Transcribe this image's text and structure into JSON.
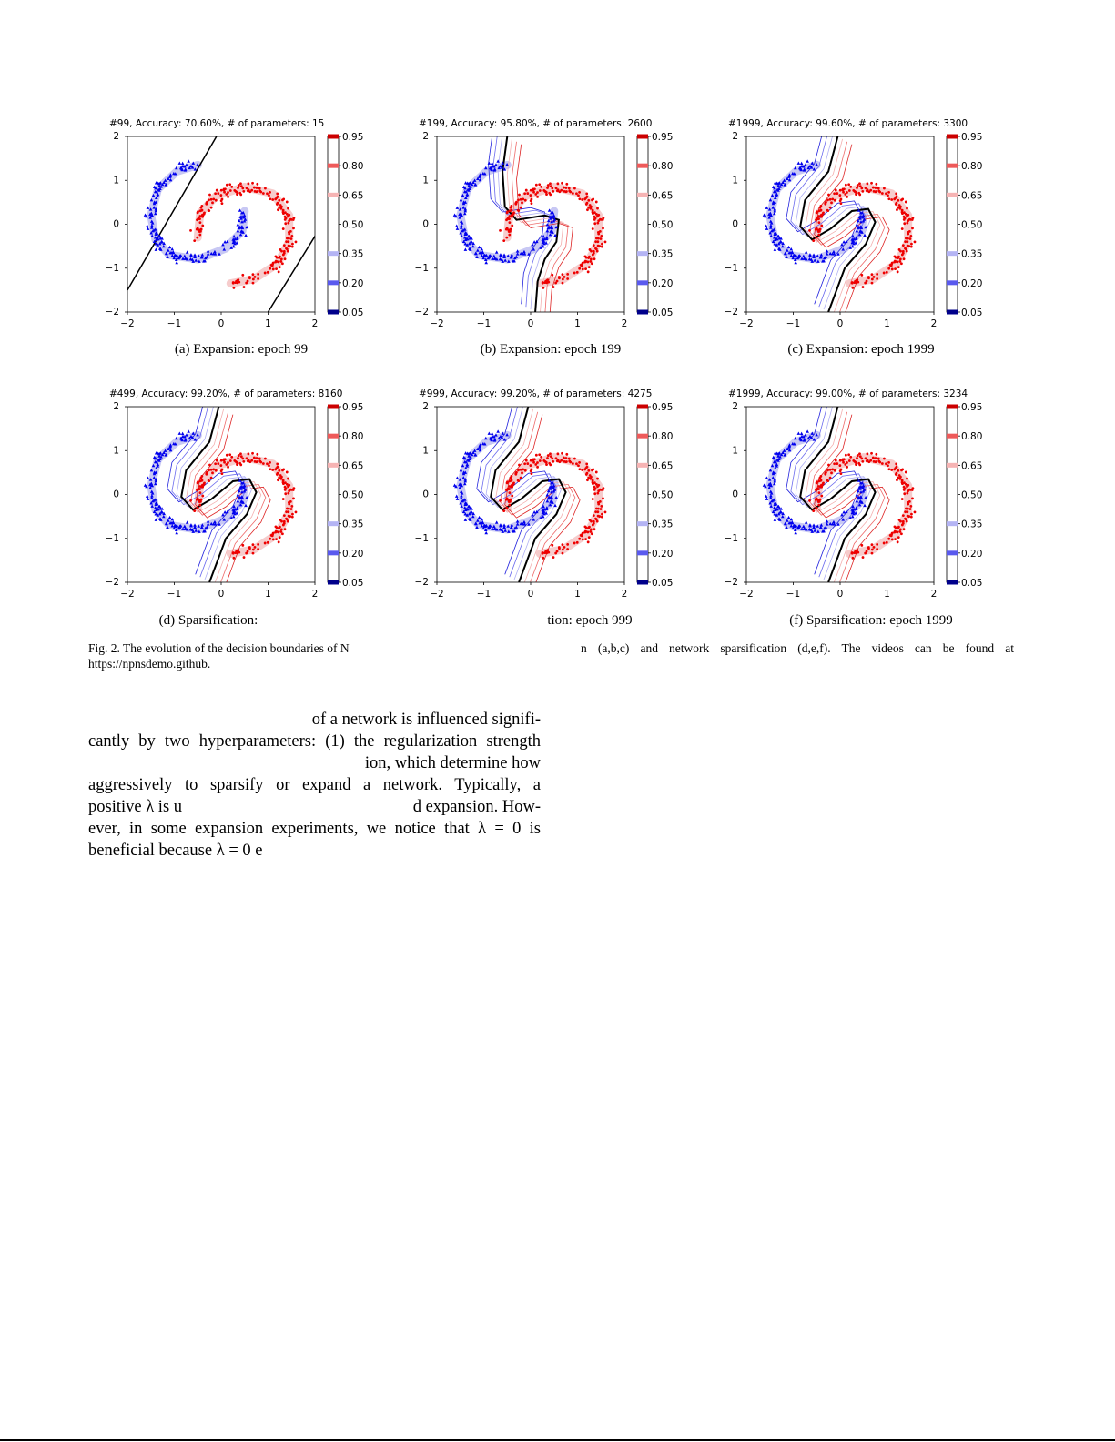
{
  "figure": {
    "subcaptions": [
      "(a) Expansion: epoch 99",
      "(b) Expansion: epoch 199",
      "(c) Expansion: epoch 1999",
      "(d) Sparsification:",
      "tion: epoch 999",
      "(f) Sparsification: epoch 1999"
    ],
    "caption_part1": "Fig. 2.   The evolution of the decision boundaries of N",
    "caption_part2": "n (a,b,c) and network sparsification (d,e,f). The videos can be found at",
    "caption_line2": "https://npnsdemo.github."
  },
  "body": {
    "lines": [
      "of a network is influenced signifi-",
      "cantly by two hyperparameters: (1) the regularization strength",
      "ion, which determine how",
      "aggressively to sparsify or expand a network. Typically, a",
      "positive λ is u",
      "d expansion. How-",
      "ever, in some expansion experiments, we notice that λ = 0 is",
      "beneficial because λ = 0 e"
    ]
  },
  "chart_data": [
    {
      "type": "scatter",
      "title": "#99, Accuracy: 70.60%, # of parameters: 15",
      "xlim": [
        -2,
        2
      ],
      "ylim": [
        -2,
        2
      ],
      "xticks": [
        "−2",
        "−1",
        "0",
        "1",
        "2"
      ],
      "yticks": [
        "−2",
        "−1",
        "0",
        "1",
        "2"
      ],
      "colorbar_ticks": [
        "0.05",
        "0.20",
        "0.35",
        "0.50",
        "0.65",
        "0.80",
        "0.95"
      ],
      "boundary": "linear",
      "classes": {
        "negative": "#0000ff",
        "positive": "#ff0000"
      }
    },
    {
      "type": "scatter",
      "title": "#199, Accuracy: 95.80%, # of parameters: 2600",
      "xlim": [
        -2,
        2
      ],
      "ylim": [
        -2,
        2
      ],
      "xticks": [
        "−2",
        "−1",
        "0",
        "1",
        "2"
      ],
      "yticks": [
        "−2",
        "−1",
        "0",
        "1",
        "2"
      ],
      "colorbar_ticks": [
        "0.05",
        "0.20",
        "0.35",
        "0.50",
        "0.65",
        "0.80",
        "0.95"
      ],
      "boundary": "curved",
      "classes": {
        "negative": "#0000ff",
        "positive": "#ff0000"
      }
    },
    {
      "type": "scatter",
      "title": "#1999, Accuracy: 99.60%, # of parameters: 3300",
      "xlim": [
        -2,
        2
      ],
      "ylim": [
        -2,
        2
      ],
      "xticks": [
        "−2",
        "−1",
        "0",
        "1",
        "2"
      ],
      "yticks": [
        "−2",
        "−1",
        "0",
        "1",
        "2"
      ],
      "colorbar_ticks": [
        "0.05",
        "0.20",
        "0.35",
        "0.50",
        "0.65",
        "0.80",
        "0.95"
      ],
      "boundary": "spiral",
      "classes": {
        "negative": "#0000ff",
        "positive": "#ff0000"
      }
    },
    {
      "type": "scatter",
      "title": "#499, Accuracy: 99.20%, # of parameters: 8160",
      "xlim": [
        -2,
        2
      ],
      "ylim": [
        -2,
        2
      ],
      "xticks": [
        "−2",
        "−1",
        "0",
        "1",
        "2"
      ],
      "yticks": [
        "−2",
        "−1",
        "0",
        "1",
        "2"
      ],
      "colorbar_ticks": [
        "0.05",
        "0.20",
        "0.35",
        "0.50",
        "0.65",
        "0.80",
        "0.95"
      ],
      "boundary": "spiral",
      "classes": {
        "negative": "#0000ff",
        "positive": "#ff0000"
      }
    },
    {
      "type": "scatter",
      "title": "#999, Accuracy: 99.20%, # of parameters: 4275",
      "xlim": [
        -2,
        2
      ],
      "ylim": [
        -2,
        2
      ],
      "xticks": [
        "−2",
        "−1",
        "0",
        "1",
        "2"
      ],
      "yticks": [
        "−2",
        "−1",
        "0",
        "1",
        "2"
      ],
      "colorbar_ticks": [
        "0.05",
        "0.20",
        "0.35",
        "0.50",
        "0.65",
        "0.80",
        "0.95"
      ],
      "boundary": "spiral",
      "classes": {
        "negative": "#0000ff",
        "positive": "#ff0000"
      }
    },
    {
      "type": "scatter",
      "title": "#1999, Accuracy: 99.00%, # of parameters: 3234",
      "xlim": [
        -2,
        2
      ],
      "ylim": [
        -2,
        2
      ],
      "xticks": [
        "−2",
        "−1",
        "0",
        "1",
        "2"
      ],
      "yticks": [
        "−2",
        "−1",
        "0",
        "1",
        "2"
      ],
      "colorbar_ticks": [
        "0.05",
        "0.20",
        "0.35",
        "0.50",
        "0.65",
        "0.80",
        "0.95"
      ],
      "boundary": "spiral",
      "classes": {
        "negative": "#0000ff",
        "positive": "#ff0000"
      }
    }
  ]
}
